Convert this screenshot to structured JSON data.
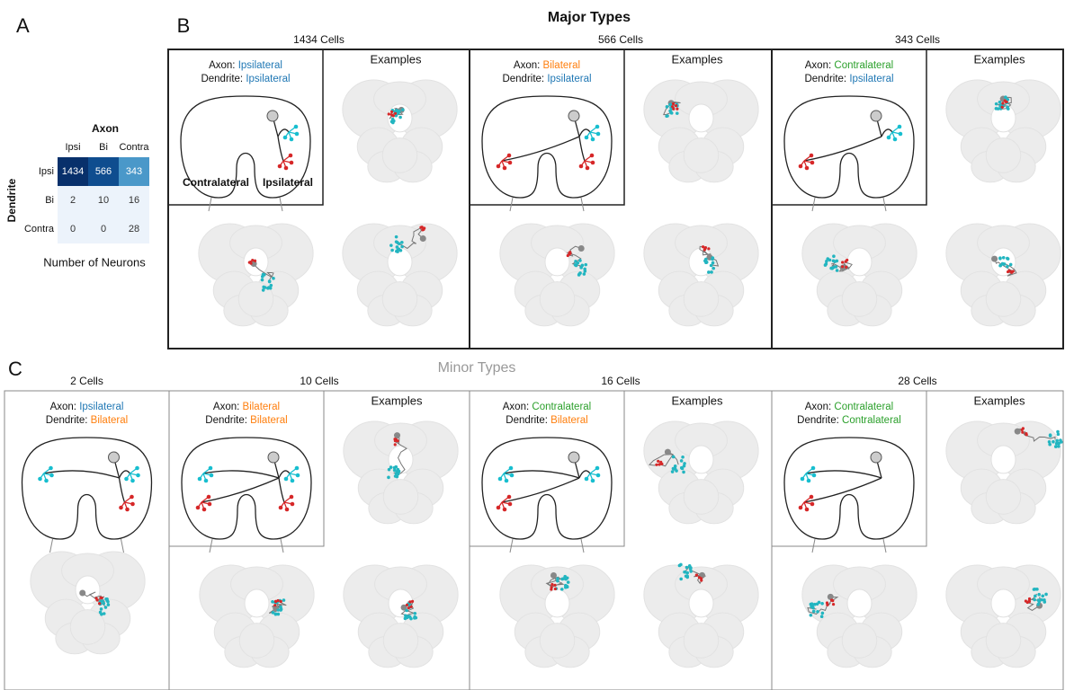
{
  "panel_a": {
    "label": "A",
    "title": "Axon",
    "row_axis": "Dendrite",
    "columns": [
      "Ipsi",
      "Bi",
      "Contra"
    ],
    "rows": [
      {
        "label": "Ipsi",
        "values": [
          1434,
          566,
          343
        ]
      },
      {
        "label": "Bi",
        "values": [
          2,
          10,
          16
        ]
      },
      {
        "label": "Contra",
        "values": [
          0,
          0,
          28
        ]
      }
    ],
    "caption": "Number of Neurons"
  },
  "axon_label": "Axon:",
  "dendrite_label": "Dendrite:",
  "examples": "Examples",
  "colors": {
    "Ipsilateral": "#1f77b4",
    "Bilateral": "#ff7f0e",
    "Contralateral": "#2ca02c"
  },
  "panel_b": {
    "label": "B",
    "title": "Major Types",
    "side_labels": [
      "Contralateral",
      "Ipsilateral"
    ],
    "types": [
      {
        "count": "1434 Cells",
        "axon": "Ipsilateral",
        "dendrite": "Ipsilateral"
      },
      {
        "count": "566 Cells",
        "axon": "Bilateral",
        "dendrite": "Ipsilateral"
      },
      {
        "count": "343 Cells",
        "axon": "Contralateral",
        "dendrite": "Ipsilateral"
      }
    ]
  },
  "panel_c": {
    "label": "C",
    "title": "Minor Types",
    "types": [
      {
        "count": "2 Cells",
        "axon": "Ipsilateral",
        "dendrite": "Bilateral"
      },
      {
        "count": "10 Cells",
        "axon": "Bilateral",
        "dendrite": "Bilateral"
      },
      {
        "count": "16 Cells",
        "axon": "Contralateral",
        "dendrite": "Bilateral"
      },
      {
        "count": "28 Cells",
        "axon": "Contralateral",
        "dendrite": "Contralateral"
      }
    ]
  }
}
